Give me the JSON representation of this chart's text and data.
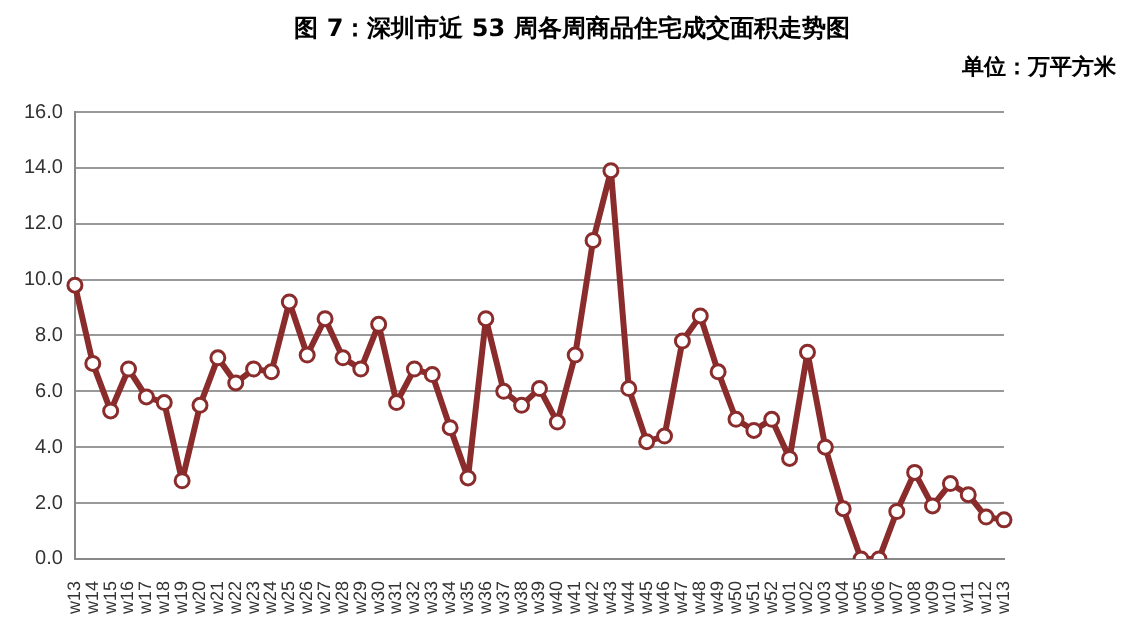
{
  "chart_data": {
    "type": "line",
    "title": "图 7：深圳市近 53 周各周商品住宅成交面积走势图",
    "subtitle": "单位：万平方米",
    "categories": [
      "w13",
      "w14",
      "w15",
      "w16",
      "w17",
      "w18",
      "w19",
      "w20",
      "w21",
      "w22",
      "w23",
      "w24",
      "w25",
      "w26",
      "w27",
      "w28",
      "w29",
      "w30",
      "w31",
      "w32",
      "w33",
      "w34",
      "w35",
      "w36",
      "w37",
      "w38",
      "w39",
      "w40",
      "w41",
      "w42",
      "w43",
      "w44",
      "w45",
      "w46",
      "w47",
      "w48",
      "w49",
      "w50",
      "w51",
      "w52",
      "w01",
      "w02",
      "w03",
      "w04",
      "w05",
      "w06",
      "w07",
      "w08",
      "w09",
      "w10",
      "w11",
      "w12",
      "w13"
    ],
    "series": [
      {
        "color": "#8b2c2c",
        "values": [
          9.8,
          7.0,
          5.3,
          6.8,
          5.8,
          5.6,
          2.8,
          5.5,
          7.2,
          6.3,
          6.8,
          6.7,
          9.2,
          7.3,
          8.6,
          7.2,
          6.8,
          8.4,
          5.6,
          6.8,
          6.6,
          4.7,
          2.9,
          8.6,
          6.0,
          5.5,
          6.1,
          4.9,
          7.3,
          11.4,
          13.9,
          6.1,
          4.2,
          4.4,
          7.8,
          8.7,
          6.7,
          5.0,
          4.6,
          5.0,
          3.6,
          7.4,
          4.0,
          1.8,
          0.0,
          0.0,
          1.7,
          3.1,
          1.9,
          2.7,
          2.3,
          1.5,
          1.4
        ]
      }
    ],
    "ylim": [
      0,
      16
    ],
    "yticks": [
      {
        "value": 0,
        "label": "0.0"
      },
      {
        "value": 2,
        "label": "2.0"
      },
      {
        "value": 4,
        "label": "4.0"
      },
      {
        "value": 6,
        "label": "6.0"
      },
      {
        "value": 8,
        "label": "8.0"
      },
      {
        "value": 10,
        "label": "10.0"
      },
      {
        "value": 12,
        "label": "12.0"
      },
      {
        "value": 14,
        "label": "14.0"
      },
      {
        "value": 16,
        "label": "16.0"
      }
    ],
    "grid": "y",
    "legend": false,
    "marker": "circle",
    "line_style": "solid"
  }
}
